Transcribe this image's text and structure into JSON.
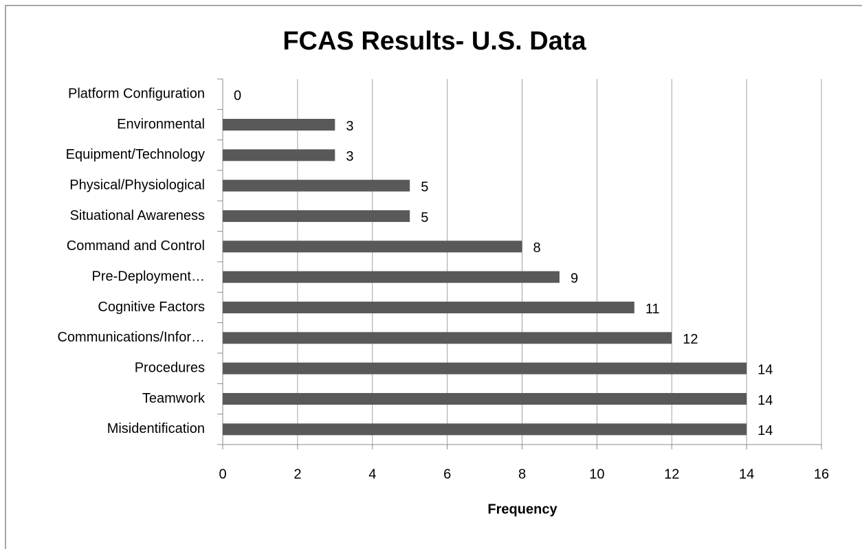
{
  "chart_data": {
    "type": "bar",
    "orientation": "horizontal",
    "title": "FCAS Results- U.S. Data",
    "x_label": "Frequency",
    "categories": [
      "Platform Configuration",
      "Environmental",
      "Equipment/Technology",
      "Physical/Physiological",
      "Situational Awareness",
      "Command and Control",
      "Pre-Deployment…",
      "Cognitive Factors",
      "Communications/Infor…",
      "Procedures",
      "Teamwork",
      "Misidentification"
    ],
    "values": [
      0,
      3,
      3,
      5,
      5,
      8,
      9,
      11,
      12,
      14,
      14,
      14
    ],
    "color": "#595959",
    "xlim": [
      0,
      16
    ],
    "xticks": [
      0,
      2,
      4,
      6,
      8,
      10,
      12,
      14,
      16
    ],
    "grid": true
  }
}
